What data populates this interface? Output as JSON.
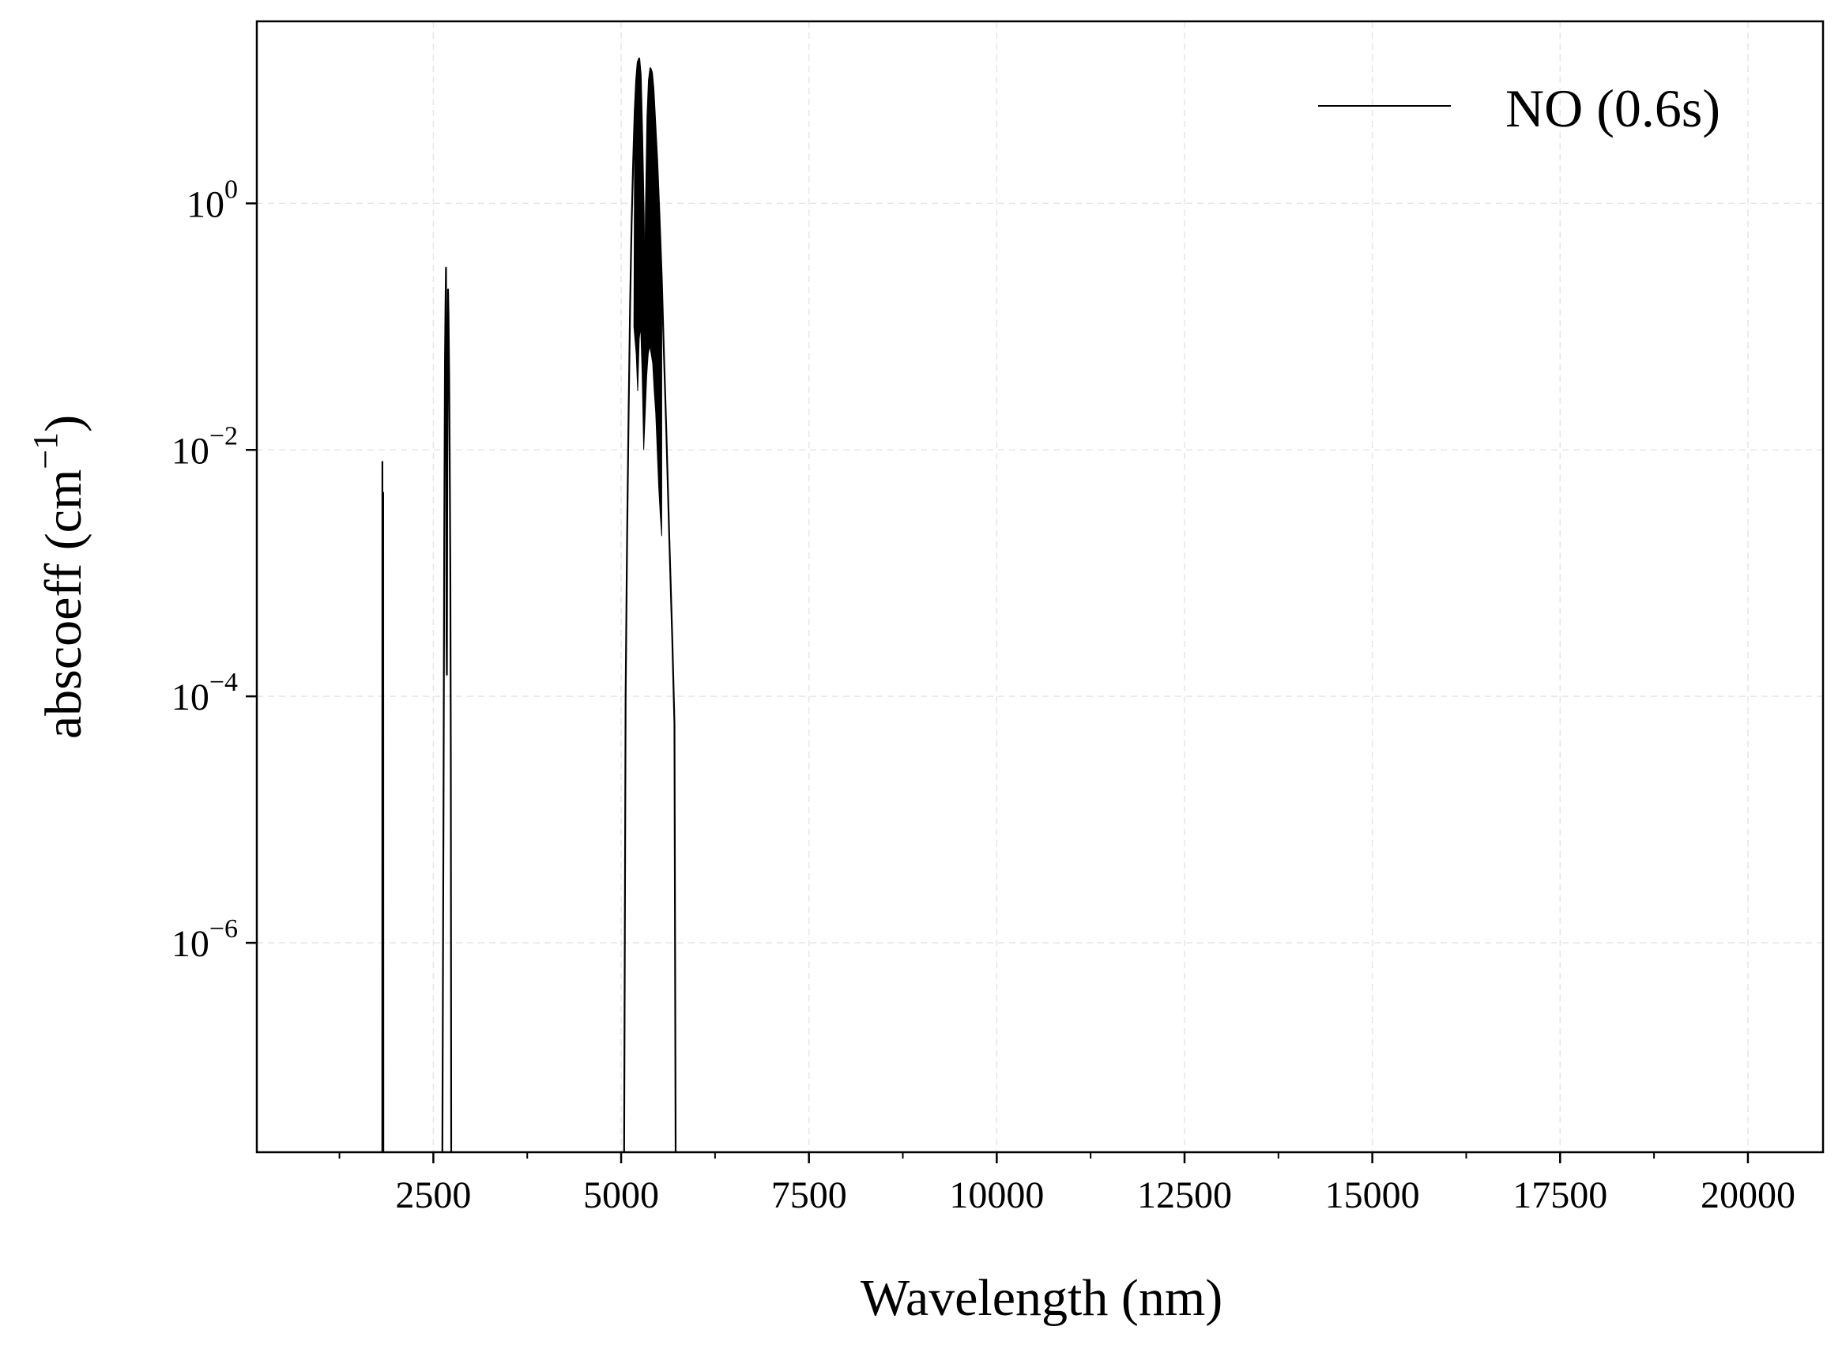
{
  "chart_data": {
    "type": "line",
    "xlabel": "Wavelength (nm)",
    "ylabel": "abscoeff (cm⁻¹)",
    "ylabel_main": "abscoeff (cm",
    "ylabel_sup": "−1",
    "ylabel_close": ")",
    "x_scale": "linear",
    "y_scale": "log",
    "xlim": [
      150,
      21000
    ],
    "ylim": [
      2e-08,
      30
    ],
    "x_ticks": [
      2500,
      5000,
      7500,
      10000,
      12500,
      15000,
      17500,
      20000
    ],
    "x_tick_labels": [
      "2500",
      "5000",
      "7500",
      "10000",
      "12500",
      "15000",
      "17500",
      "20000"
    ],
    "x_minor_ticks": [
      1250,
      3750,
      6250,
      8750,
      11250,
      13750,
      16250,
      18750
    ],
    "y_ticks": [
      1,
      0.01,
      0.0001,
      1e-06
    ],
    "y_tick_labels": [
      {
        "base": "10",
        "exp": "0"
      },
      {
        "base": "10",
        "exp": "−2"
      },
      {
        "base": "10",
        "exp": "−4"
      },
      {
        "base": "10",
        "exp": "−6"
      }
    ],
    "grid": true,
    "legend_position": "top-right",
    "series": [
      {
        "name": "NO (0.6s)",
        "color": "#000000",
        "bands": [
          {
            "points": [
              [
                1820,
                2e-08
              ],
              [
                1822,
                0.008
              ],
              [
                1824,
                2e-08
              ],
              [
                1830,
                2e-08
              ],
              [
                1832,
                0.0045
              ],
              [
                1834,
                2e-08
              ]
            ]
          },
          {
            "points": [
              [
                2620,
                2e-08
              ],
              [
                2635,
                1e-05
              ],
              [
                2645,
                0.002
              ],
              [
                2655,
                0.05
              ],
              [
                2662,
                0.15
              ],
              [
                2668,
                0.3
              ],
              [
                2672,
                0.05
              ],
              [
                2676,
                0.0003
              ],
              [
                2680,
                0.00015
              ],
              [
                2684,
                0.003
              ],
              [
                2690,
                0.05
              ],
              [
                2696,
                0.2
              ],
              [
                2702,
                0.12
              ],
              [
                2710,
                0.04
              ],
              [
                2718,
                0.008
              ],
              [
                2726,
                0.001
              ],
              [
                2733,
                3e-05
              ],
              [
                2738,
                2e-08
              ]
            ]
          },
          {
            "points": [
              [
                5040,
                2e-08
              ],
              [
                5060,
                0.0001
              ],
              [
                5080,
                0.002
              ],
              [
                5100,
                0.02
              ],
              [
                5120,
                0.15
              ],
              [
                5140,
                0.7
              ],
              [
                5160,
                2.2
              ],
              [
                5180,
                5.5
              ],
              [
                5200,
                10
              ],
              [
                5220,
                14
              ],
              [
                5240,
                15
              ],
              [
                5260,
                11
              ],
              [
                5280,
                3.5
              ],
              [
                5300,
                0.8
              ],
              [
                5310,
                0.2
              ],
              [
                5320,
                0.2
              ],
              [
                5330,
                0.9
              ],
              [
                5350,
                5
              ],
              [
                5370,
                10
              ],
              [
                5390,
                12.5
              ],
              [
                5410,
                11.5
              ],
              [
                5430,
                8.5
              ],
              [
                5450,
                5
              ],
              [
                5480,
                2.2
              ],
              [
                5510,
                0.8
              ],
              [
                5540,
                0.25
              ],
              [
                5570,
                0.06
              ],
              [
                5600,
                0.015
              ],
              [
                5640,
                0.002
              ],
              [
                5680,
                0.0003
              ],
              [
                5710,
                6e-05
              ],
              [
                5725,
                2e-08
              ]
            ],
            "lower": [
              [
                5170,
                0.1
              ],
              [
                5200,
                0.06
              ],
              [
                5220,
                0.03
              ],
              [
                5240,
                0.08
              ],
              [
                5260,
                0.1
              ],
              [
                5280,
                0.04
              ],
              [
                5300,
                0.01
              ],
              [
                5320,
                0.02
              ],
              [
                5340,
                0.04
              ],
              [
                5360,
                0.06
              ],
              [
                5380,
                0.07
              ],
              [
                5400,
                0.06
              ],
              [
                5420,
                0.05
              ],
              [
                5440,
                0.03
              ],
              [
                5460,
                0.02
              ],
              [
                5480,
                0.01
              ],
              [
                5500,
                0.005
              ],
              [
                5520,
                0.003
              ],
              [
                5540,
                0.002
              ]
            ]
          }
        ]
      }
    ]
  }
}
